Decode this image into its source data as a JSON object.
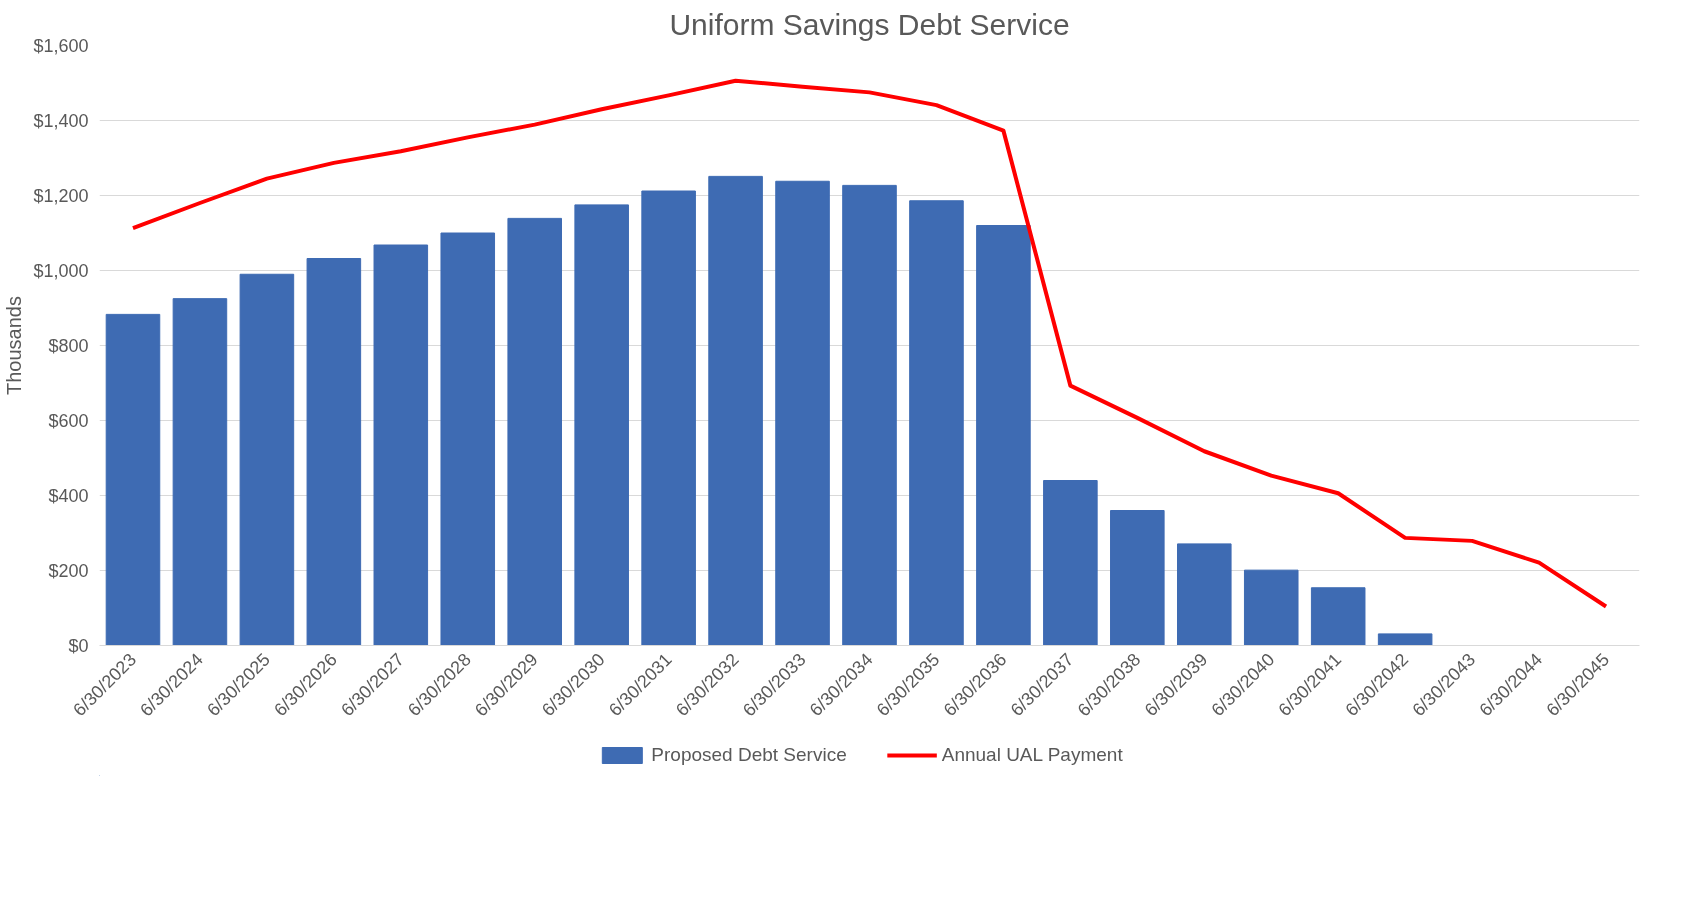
{
  "chart_data": {
    "type": "bar",
    "title": "Uniform Savings Debt Service",
    "ylabel": "Thousands",
    "categories": [
      "6/30/2023",
      "6/30/2024",
      "6/30/2025",
      "6/30/2026",
      "6/30/2027",
      "6/30/2028",
      "6/30/2029",
      "6/30/2030",
      "6/30/2031",
      "6/30/2032",
      "6/30/2033",
      "6/30/2034",
      "6/30/2035",
      "6/30/2036",
      "6/30/2037",
      "6/30/2038",
      "6/30/2039",
      "6/30/2040",
      "6/30/2041",
      "6/30/2042",
      "6/30/2043",
      "6/30/2044",
      "6/30/2045"
    ],
    "series": [
      {
        "name": "Proposed Debt Service",
        "color": "#3e6bb3",
        "values": [
          883,
          925,
          990,
          1032,
          1068,
          1100,
          1139,
          1175,
          1212,
          1251,
          1238,
          1227,
          1186,
          1120,
          440,
          360,
          271,
          201,
          154,
          31,
          0,
          0,
          0
        ]
      },
      {
        "name": "Annual UAL Payment",
        "type": "line",
        "color": "#ff0000",
        "values": [
          1113,
          1180,
          1245,
          1287,
          1318,
          1355,
          1389,
          1430,
          1467,
          1506,
          1490,
          1475,
          1441,
          1373,
          693,
          607,
          518,
          453,
          406,
          287,
          279,
          221,
          104
        ]
      }
    ],
    "ylim": [
      0,
      1600
    ],
    "yticks": [
      {
        "value": 0,
        "label": "$0"
      },
      {
        "value": 200,
        "label": "$200"
      },
      {
        "value": 400,
        "label": "$400"
      },
      {
        "value": 600,
        "label": "$600"
      },
      {
        "value": 800,
        "label": "$800"
      },
      {
        "value": 1000,
        "label": "$1,000"
      },
      {
        "value": 1200,
        "label": "$1,200"
      },
      {
        "value": 1400,
        "label": "$1,400"
      },
      {
        "value": 1600,
        "label": "$1,600"
      }
    ],
    "grid": "y",
    "legend": "bottom",
    "marker": "none",
    "line_style": "solid"
  }
}
